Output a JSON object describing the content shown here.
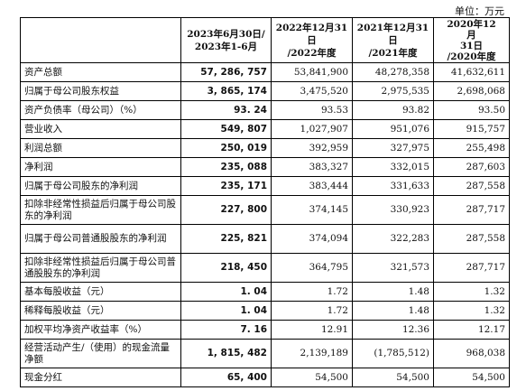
{
  "unit_label": "单位：万元",
  "headers": [
    "",
    "2023年6月30日/\n2023年1-6月",
    "2022年12月31日\n/2022年度",
    "2021年12月31日\n/2021年度",
    "2020年12\n月\n31日\n/2020年度"
  ],
  "rows": [
    {
      "label": "资产总额",
      "values": [
        "57, 286, 757",
        "53,841,900",
        "48,278,358",
        "41,632,611"
      ],
      "tall": false
    },
    {
      "label": "归属于母公司股东权益",
      "values": [
        "3, 865, 174",
        "3,475,520",
        "2,975,535",
        "2,698,068"
      ],
      "tall": false
    },
    {
      "label": "资产负债率（母公司）（%）",
      "values": [
        "93. 24",
        "93.53",
        "93.82",
        "93.50"
      ],
      "tall": false
    },
    {
      "label": "营业收入",
      "values": [
        "549, 807",
        "1,027,907",
        "951,076",
        "915,757"
      ],
      "tall": false
    },
    {
      "label": "利润总额",
      "values": [
        "250, 019",
        "392,959",
        "327,975",
        "255,498"
      ],
      "tall": false
    },
    {
      "label": "净利润",
      "values": [
        "235, 088",
        "383,327",
        "332,015",
        "287,603"
      ],
      "tall": false
    },
    {
      "label": "归属于母公司股东的净利润",
      "values": [
        "235, 171",
        "383,444",
        "331,633",
        "287,558"
      ],
      "tall": false
    },
    {
      "label": "扣除非经常性损益后归属于母公司股东的净利润",
      "values": [
        "227, 800",
        "374,145",
        "330,923",
        "287,717"
      ],
      "tall": true
    },
    {
      "label": "归属于母公司普通股股东的净利润",
      "values": [
        "225, 821",
        "374,094",
        "322,283",
        "287,558"
      ],
      "tall": true
    },
    {
      "label": "扣除非经常性损益后归属于母公司普通股股东的净利润",
      "values": [
        "218, 450",
        "364,795",
        "321,573",
        "287,717"
      ],
      "tall": true
    },
    {
      "label": "基本每股收益（元）",
      "values": [
        "1. 04",
        "1.72",
        "1.48",
        "1.32"
      ],
      "tall": false
    },
    {
      "label": "稀释每股收益（元）",
      "values": [
        "1. 04",
        "1.72",
        "1.48",
        "1.32"
      ],
      "tall": false
    },
    {
      "label": "加权平均净资产收益率（%）",
      "values": [
        "7. 16",
        "12.91",
        "12.36",
        "12.17"
      ],
      "tall": false
    },
    {
      "label": "经营活动产生/（使用）的现金流量净额",
      "values": [
        "1, 815, 482",
        "2,139,189",
        "(1,785,512)",
        "968,038"
      ],
      "tall": true
    },
    {
      "label": "现金分红",
      "values": [
        "65, 400",
        "54,500",
        "54,500",
        "54,500"
      ],
      "tall": false
    }
  ]
}
